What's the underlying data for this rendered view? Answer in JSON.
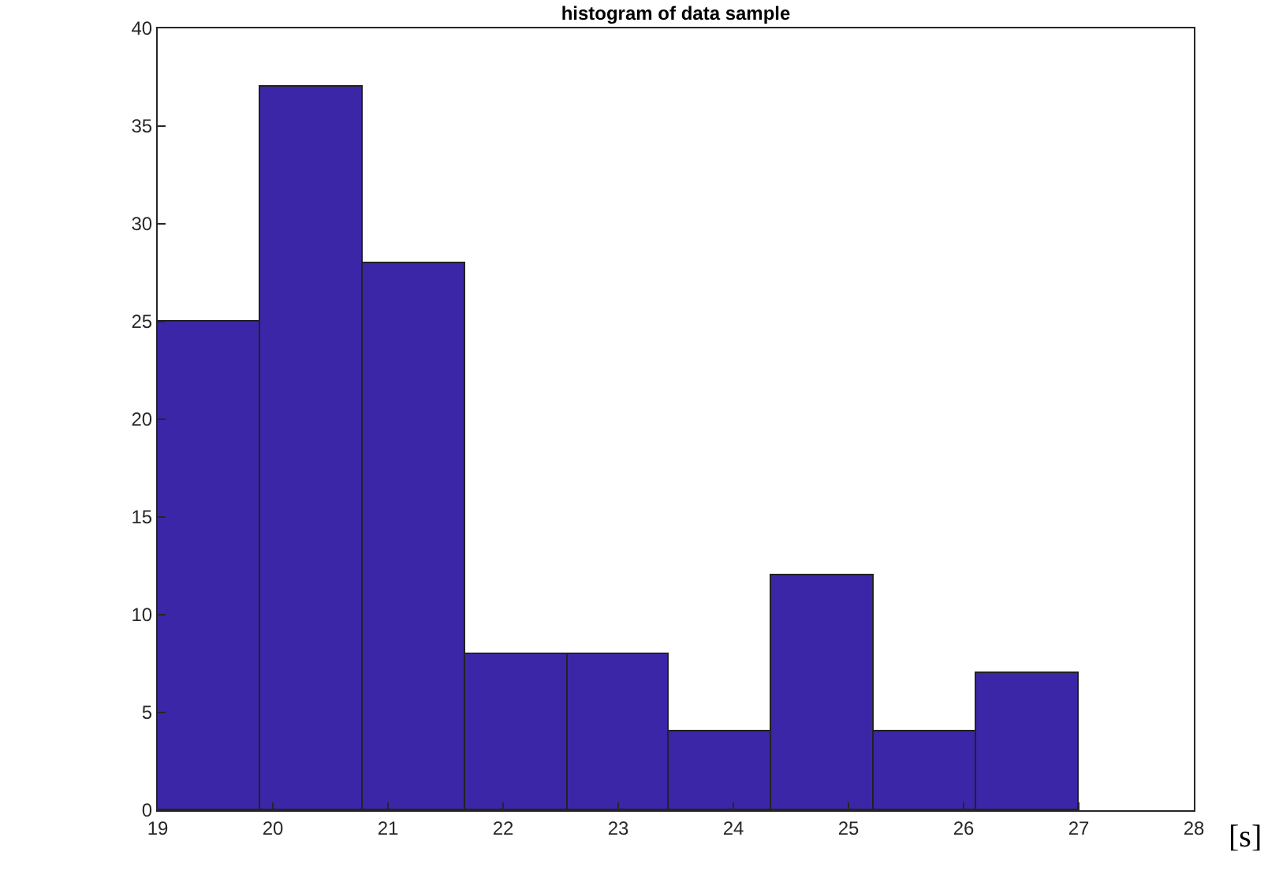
{
  "chart_data": {
    "type": "histogram",
    "title": "histogram of data sample",
    "xlabel": "[s]",
    "bins": [
      19,
      19.89,
      20.78,
      21.67,
      22.56,
      23.44,
      24.33,
      25.22,
      26.11,
      27
    ],
    "values": [
      25,
      37,
      28,
      8,
      8,
      4,
      12,
      4,
      7
    ],
    "color": "#3b26a8",
    "xlim": [
      19,
      28
    ],
    "xticks": [
      19,
      20,
      21,
      22,
      23,
      24,
      25,
      26,
      27,
      28
    ],
    "ylim": [
      0,
      40
    ],
    "yticks": [
      0,
      5,
      10,
      15,
      20,
      25,
      30,
      35,
      40
    ]
  }
}
